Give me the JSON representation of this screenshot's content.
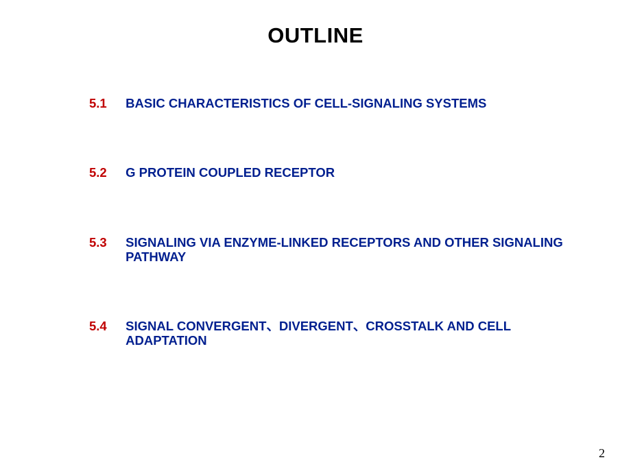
{
  "title": "OUTLINE",
  "title_fontsize": 31,
  "title_color": "#000000",
  "number_color": "#c00000",
  "text_color": "#001f8f",
  "item_fontsize": 18.5,
  "background_color": "#ffffff",
  "page_number": "2",
  "items": [
    {
      "num": "5.1",
      "text": "BASIC CHARACTERISTICS OF CELL-SIGNALING SYSTEMS"
    },
    {
      "num": "5.2",
      "text": "G PROTEIN COUPLED RECEPTOR"
    },
    {
      "num": "5.3",
      "text": "SIGNALING VIA ENZYME-LINKED RECEPTORS AND OTHER SIGNALING PATHWAY"
    },
    {
      "num": "5.4",
      "text": "SIGNAL CONVERGENT、DIVERGENT、CROSSTALK AND CELL ADAPTATION"
    }
  ]
}
